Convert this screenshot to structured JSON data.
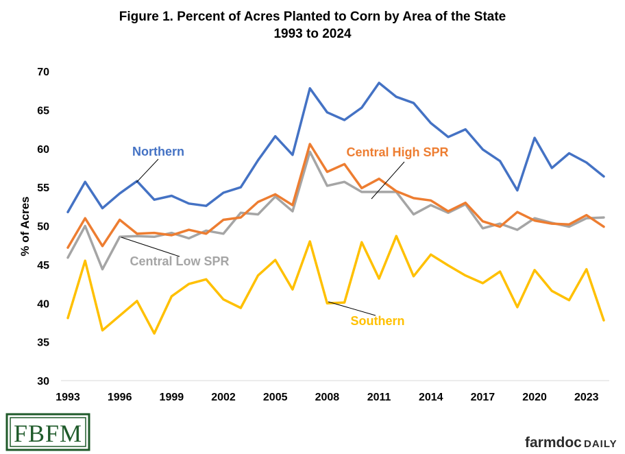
{
  "chart_data": {
    "type": "line",
    "title": "Figure  1. Percent of Acres Planted to Corn by Area of the State",
    "subtitle": "1993  to  2024",
    "xlabel": "",
    "ylabel": "% of Acres",
    "ylim": [
      30,
      70
    ],
    "yticks": [
      30,
      35,
      40,
      45,
      50,
      55,
      60,
      65,
      70
    ],
    "xlim": [
      1993,
      2024
    ],
    "xtick_labels": [
      "1993",
      "1996",
      "1999",
      "2002",
      "2005",
      "2008",
      "2011",
      "2014",
      "2017",
      "2020",
      "2023"
    ],
    "grid": false,
    "x": [
      1993,
      1994,
      1995,
      1996,
      1997,
      1998,
      1999,
      2000,
      2001,
      2002,
      2003,
      2004,
      2005,
      2006,
      2007,
      2008,
      2009,
      2010,
      2011,
      2012,
      2013,
      2014,
      2015,
      2016,
      2017,
      2018,
      2019,
      2020,
      2021,
      2022,
      2023,
      2024
    ],
    "series": [
      {
        "name": "Northern",
        "color": "#4472c4",
        "values": [
          51.8,
          55.7,
          52.3,
          54.2,
          55.8,
          53.4,
          53.9,
          52.9,
          52.6,
          54.3,
          55.0,
          58.5,
          61.6,
          59.2,
          67.8,
          64.7,
          63.7,
          65.3,
          68.5,
          66.7,
          65.9,
          63.3,
          61.5,
          62.5,
          59.9,
          58.4,
          54.6,
          61.4,
          57.5,
          59.4,
          58.2,
          56.4
        ]
      },
      {
        "name": "Central High SPR",
        "color": "#ed7d31",
        "values": [
          47.2,
          51.0,
          47.4,
          50.8,
          49.0,
          49.1,
          48.8,
          49.5,
          49.0,
          50.8,
          51.1,
          53.1,
          54.1,
          52.7,
          60.6,
          57.0,
          58.0,
          54.9,
          56.1,
          54.5,
          53.6,
          53.3,
          51.9,
          53.0,
          50.6,
          49.9,
          51.8,
          50.7,
          50.3,
          50.2,
          51.4,
          49.9
        ]
      },
      {
        "name": "Central Low SPR",
        "color": "#a5a5a5",
        "values": [
          45.9,
          50.0,
          44.4,
          48.6,
          48.7,
          48.6,
          49.1,
          48.4,
          49.4,
          49.0,
          51.7,
          51.5,
          53.8,
          51.9,
          59.6,
          55.2,
          55.7,
          54.4,
          54.4,
          54.4,
          51.5,
          52.7,
          51.7,
          52.8,
          49.7,
          50.3,
          49.5,
          51.0,
          50.4,
          49.9,
          51.0,
          51.1
        ]
      },
      {
        "name": "Southern",
        "color": "#ffc000",
        "values": [
          38.1,
          45.5,
          36.5,
          38.4,
          40.3,
          36.1,
          40.9,
          42.5,
          43.1,
          40.5,
          39.4,
          43.6,
          45.6,
          41.8,
          48.0,
          40.0,
          40.1,
          47.9,
          43.2,
          48.7,
          43.5,
          46.3,
          44.9,
          43.6,
          42.6,
          44.1,
          39.5,
          44.3,
          41.6,
          40.4,
          44.4,
          37.8
        ]
      }
    ],
    "annotations": [
      {
        "series": "Northern",
        "text": "Northern"
      },
      {
        "series": "Central High SPR",
        "text": "Central High SPR"
      },
      {
        "series": "Central Low SPR",
        "text": "Central Low SPR"
      },
      {
        "series": "Southern",
        "text": "Southern"
      }
    ]
  },
  "branding": {
    "left_logo": "FBFM",
    "right_logo_farmdoc": "farmdoc",
    "right_logo_daily": "DAILY"
  }
}
